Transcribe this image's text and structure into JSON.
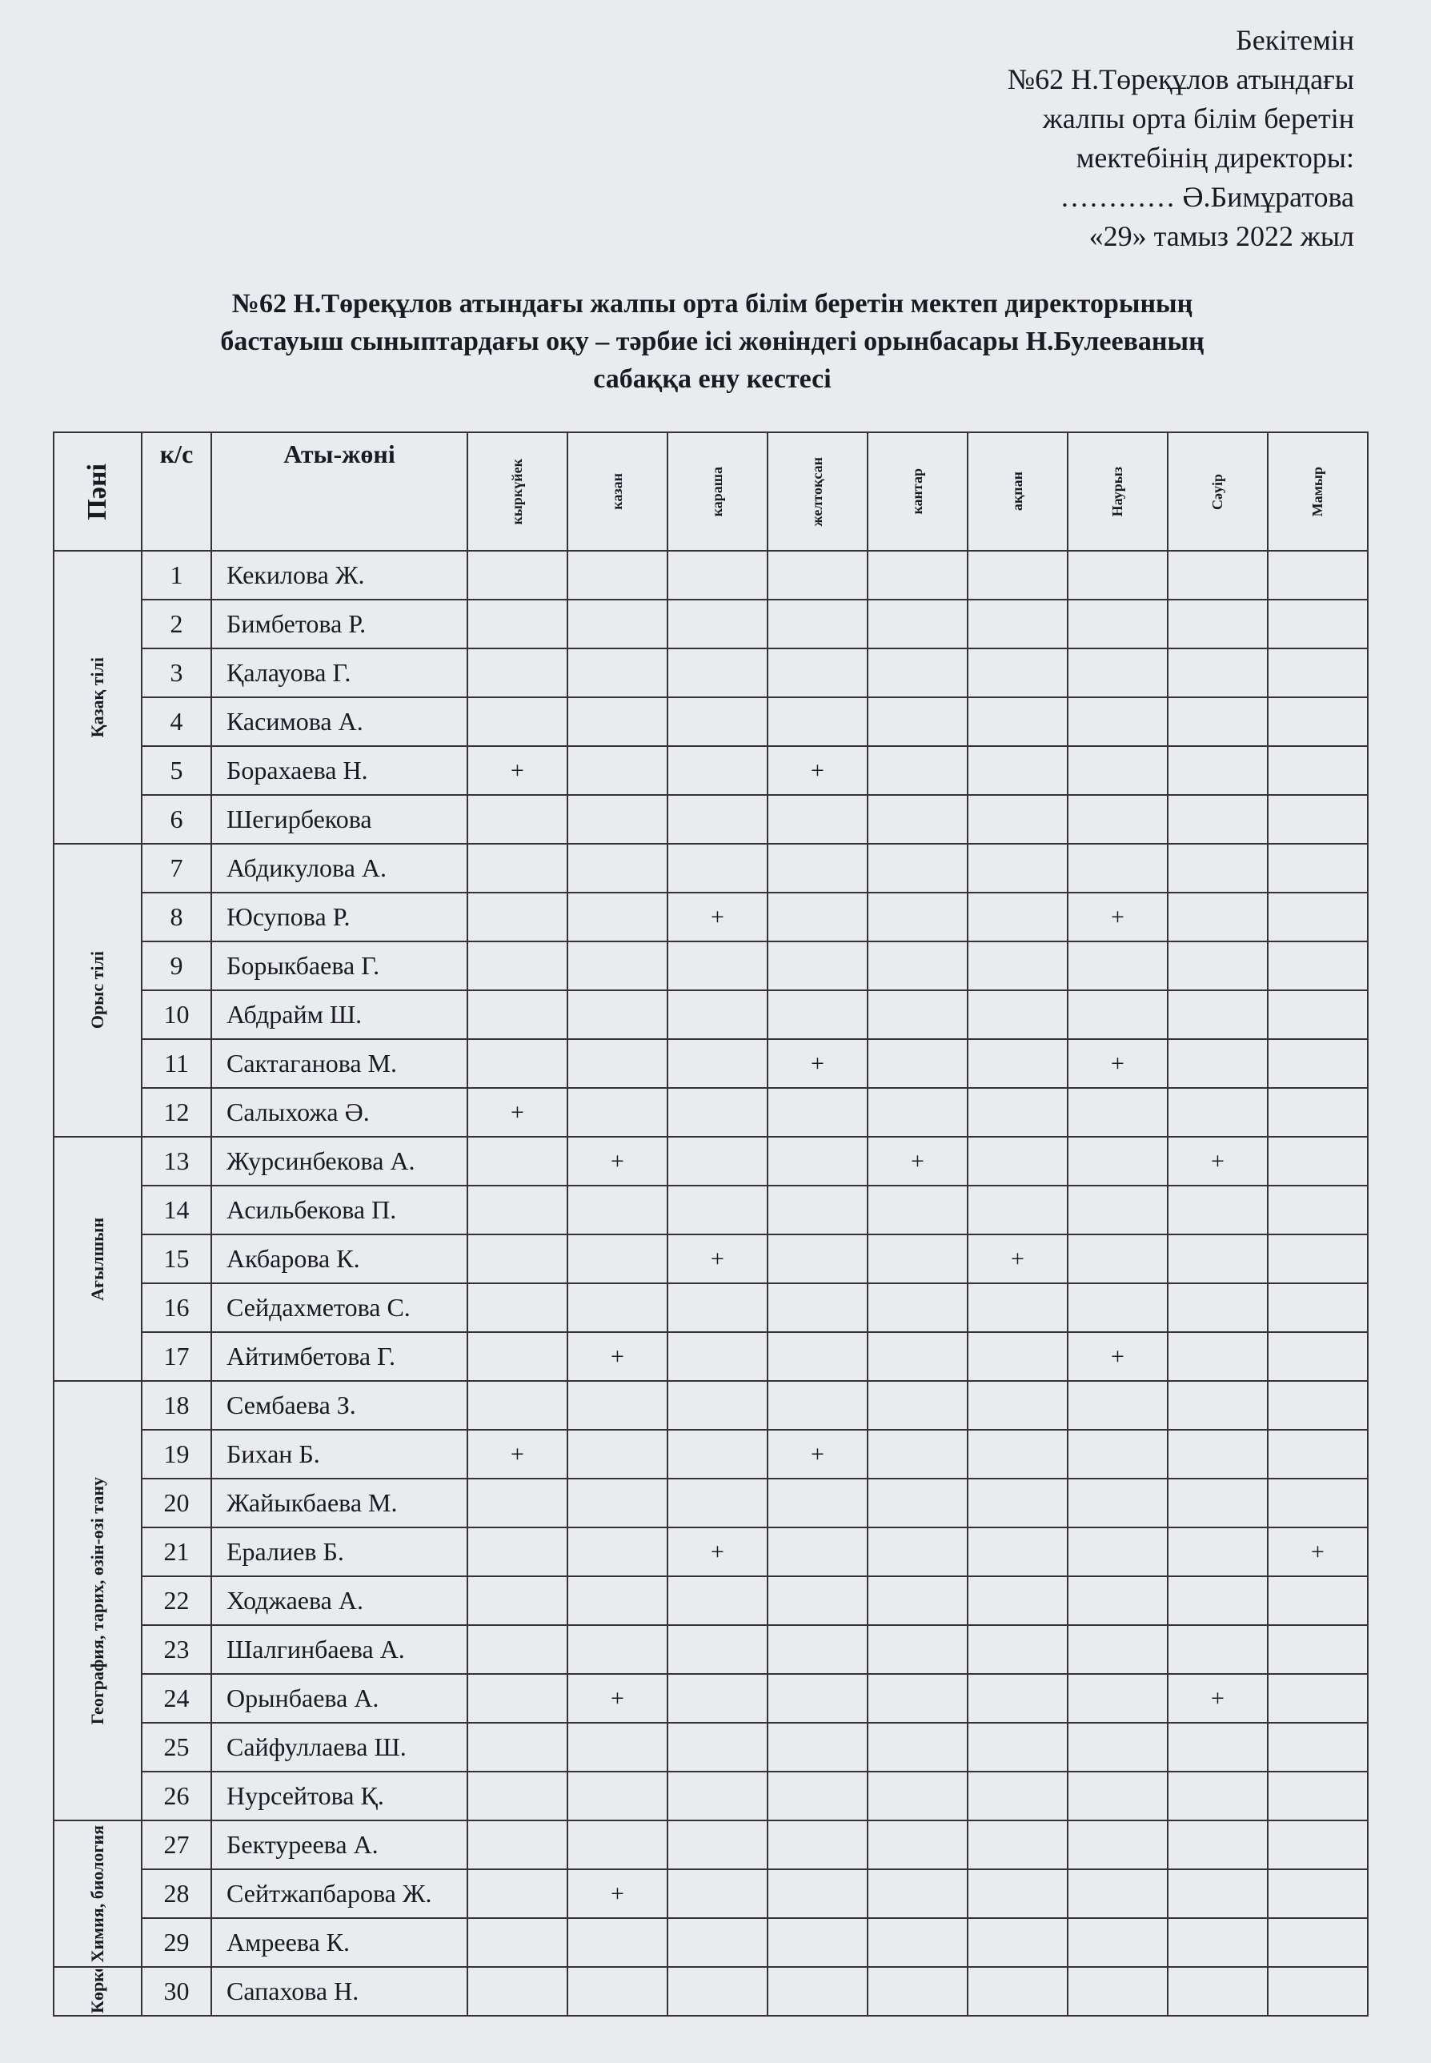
{
  "approval": {
    "lines": [
      "Бекітемін",
      "№62 Н.Төреқұлов атындағы",
      "жалпы орта білім беретін",
      "мектебінің директоры:",
      "…………  Ә.Бимұратова",
      "«29» тамыз 2022 жыл"
    ]
  },
  "title": {
    "lines": [
      "№62 Н.Төреқұлов атындағы жалпы орта білім беретін мектеп директорының",
      "бастауыш сыныптардағы оқу – тәрбие ісі жөніндегі орынбасары Н.Булееваның",
      "сабаққа ену  кестесі"
    ]
  },
  "table": {
    "headers": {
      "subject": "Пәні",
      "no": "к/с",
      "name": "Аты-жөні",
      "months": [
        "кыркүйек",
        "казан",
        "караша",
        "желтоқсан",
        "кантар",
        "ақпан",
        "Наурыз",
        "Сәуір",
        "Мамыр"
      ]
    },
    "groups": [
      {
        "subject": "Қазақ тілі",
        "rows": [
          {
            "no": 1,
            "name": "Кекилова Ж.",
            "cells": [
              null,
              null,
              null,
              null,
              null,
              null,
              null,
              null,
              null
            ]
          },
          {
            "no": 2,
            "name": "Бимбетова Р.",
            "cells": [
              null,
              null,
              null,
              null,
              null,
              null,
              null,
              null,
              null
            ]
          },
          {
            "no": 3,
            "name": "Қалауова  Г.",
            "cells": [
              null,
              null,
              null,
              null,
              null,
              null,
              null,
              null,
              null
            ]
          },
          {
            "no": 4,
            "name": "Касимова А.",
            "cells": [
              null,
              null,
              null,
              null,
              null,
              null,
              null,
              null,
              null
            ]
          },
          {
            "no": 5,
            "name": "Борахаева Н.",
            "cells": [
              "+",
              null,
              null,
              "+",
              null,
              null,
              null,
              null,
              null
            ]
          },
          {
            "no": 6,
            "name": "Шегирбекова",
            "cells": [
              null,
              null,
              null,
              null,
              null,
              null,
              null,
              null,
              null
            ]
          }
        ]
      },
      {
        "subject": "Орыс тілі",
        "rows": [
          {
            "no": 7,
            "name": "Абдикулова  А.",
            "cells": [
              null,
              null,
              null,
              null,
              null,
              null,
              null,
              null,
              null
            ]
          },
          {
            "no": 8,
            "name": "Юсупова Р.",
            "cells": [
              null,
              null,
              "+",
              null,
              null,
              null,
              "+",
              null,
              null
            ]
          },
          {
            "no": 9,
            "name": "Борыкбаева Г.",
            "cells": [
              null,
              null,
              null,
              null,
              null,
              null,
              null,
              null,
              null
            ]
          },
          {
            "no": 10,
            "name": "Абдрайм Ш.",
            "cells": [
              null,
              null,
              null,
              null,
              null,
              null,
              null,
              null,
              null
            ]
          },
          {
            "no": 11,
            "name": "Сактаганова М.",
            "cells": [
              null,
              null,
              null,
              "+",
              null,
              null,
              "+",
              null,
              null
            ]
          },
          {
            "no": 12,
            "name": "Салыхожа Ә.",
            "cells": [
              "+",
              null,
              null,
              null,
              null,
              null,
              null,
              null,
              null
            ]
          }
        ]
      },
      {
        "subject": "Ағылшын",
        "rows": [
          {
            "no": 13,
            "name": "Журсинбекова А.",
            "cells": [
              null,
              "+",
              null,
              null,
              "+",
              null,
              null,
              "+",
              null
            ]
          },
          {
            "no": 14,
            "name": "Асильбекова П.",
            "cells": [
              null,
              null,
              null,
              null,
              null,
              null,
              null,
              null,
              null
            ]
          },
          {
            "no": 15,
            "name": "Акбарова К.",
            "cells": [
              null,
              null,
              "+",
              null,
              null,
              "+",
              null,
              null,
              null
            ]
          },
          {
            "no": 16,
            "name": "Сейдахметова С.",
            "cells": [
              null,
              null,
              null,
              null,
              null,
              null,
              null,
              null,
              null
            ]
          },
          {
            "no": 17,
            "name": "Айтимбетова Г.",
            "cells": [
              null,
              "+",
              null,
              null,
              null,
              null,
              "+",
              null,
              null
            ]
          }
        ]
      },
      {
        "subject": "География, тарих, өзін-өзі тану",
        "rows": [
          {
            "no": 18,
            "name": "Сембаева З.",
            "cells": [
              null,
              null,
              null,
              null,
              null,
              null,
              null,
              null,
              null
            ]
          },
          {
            "no": 19,
            "name": "Бихан Б.",
            "cells": [
              "+",
              null,
              null,
              "+",
              null,
              null,
              null,
              null,
              null
            ]
          },
          {
            "no": 20,
            "name": "Жайыкбаева М.",
            "cells": [
              null,
              null,
              null,
              null,
              null,
              null,
              null,
              null,
              null
            ]
          },
          {
            "no": 21,
            "name": "Ералиев Б.",
            "cells": [
              null,
              null,
              "+",
              null,
              null,
              null,
              null,
              null,
              "+"
            ]
          },
          {
            "no": 22,
            "name": "Ходжаева А.",
            "cells": [
              null,
              null,
              null,
              null,
              null,
              null,
              null,
              null,
              null
            ]
          },
          {
            "no": 23,
            "name": "Шалгинбаева А.",
            "cells": [
              null,
              null,
              null,
              null,
              null,
              null,
              null,
              null,
              null
            ]
          },
          {
            "no": 24,
            "name": "Орынбаева А.",
            "cells": [
              null,
              "+",
              null,
              null,
              null,
              null,
              null,
              "+",
              null
            ]
          },
          {
            "no": 25,
            "name": "Сайфуллаева Ш.",
            "cells": [
              null,
              null,
              null,
              null,
              null,
              null,
              null,
              null,
              null
            ]
          },
          {
            "no": 26,
            "name": "Нурсейтова Қ.",
            "cells": [
              null,
              null,
              null,
              null,
              null,
              null,
              null,
              null,
              null
            ]
          }
        ]
      },
      {
        "subject": "Химия, биология",
        "rows": [
          {
            "no": 27,
            "name": "Бектуреева А.",
            "cells": [
              null,
              null,
              null,
              null,
              null,
              null,
              null,
              null,
              null
            ]
          },
          {
            "no": 28,
            "name": "Сейтжапбарова Ж.",
            "cells": [
              null,
              "+",
              null,
              null,
              null,
              null,
              null,
              null,
              null
            ]
          },
          {
            "no": 29,
            "name": "Амреева  К.",
            "cells": [
              null,
              null,
              null,
              null,
              null,
              null,
              null,
              null,
              null
            ]
          }
        ]
      },
      {
        "subject": "Көркем",
        "rows": [
          {
            "no": 30,
            "name": "Сапахова Н.",
            "cells": [
              null,
              null,
              null,
              null,
              null,
              null,
              null,
              null,
              null
            ]
          }
        ]
      }
    ]
  }
}
